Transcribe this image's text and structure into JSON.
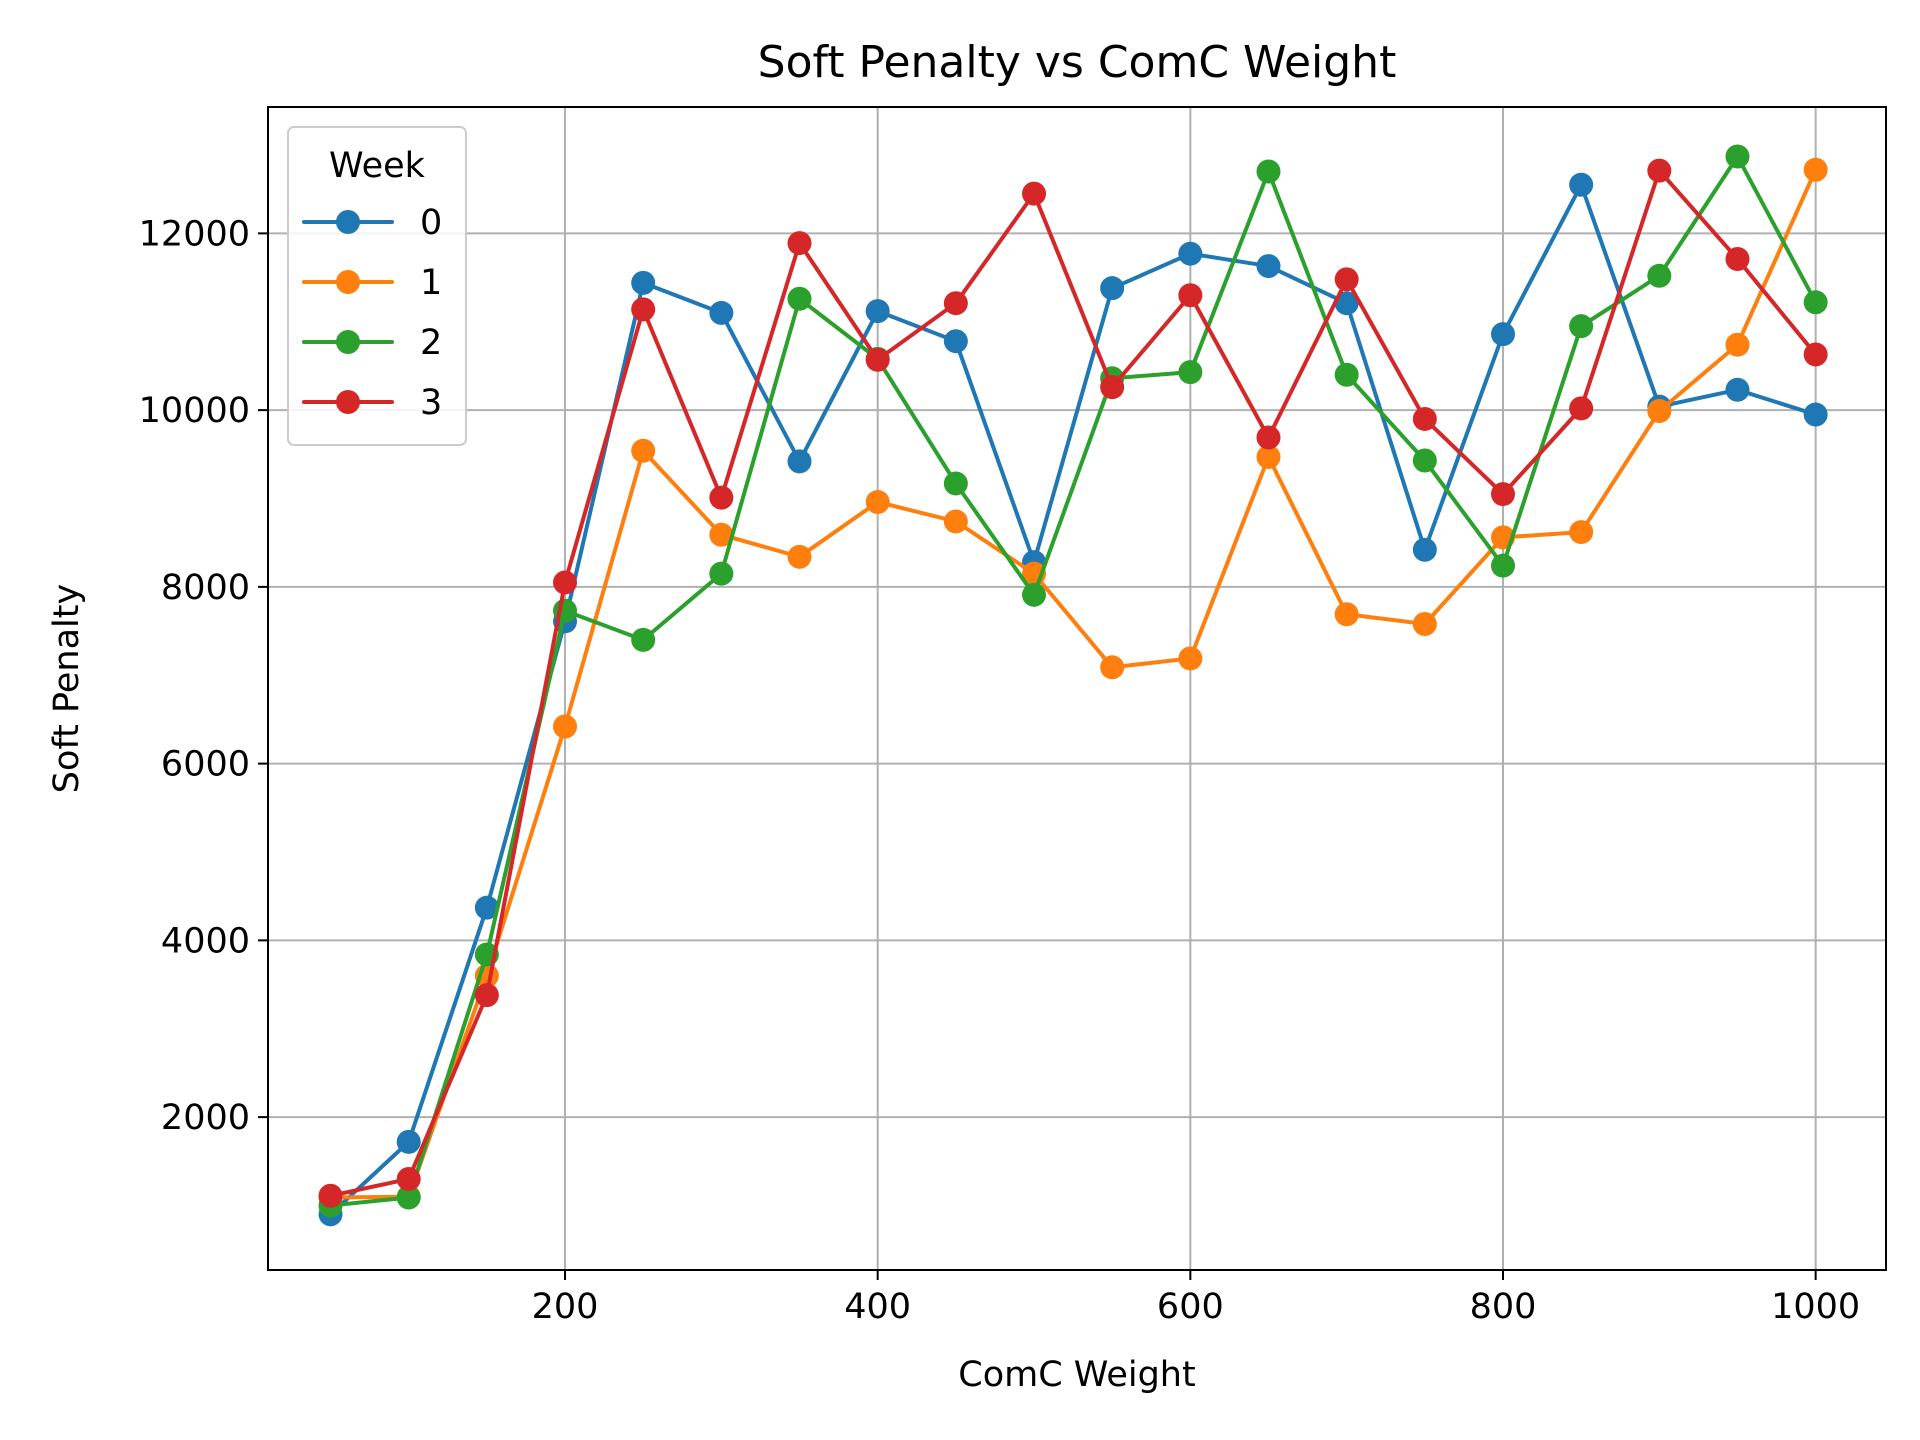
{
  "chart_data": {
    "type": "line",
    "title": "Soft Penalty vs ComC Weight",
    "xlabel": "ComC Weight",
    "ylabel": "Soft Penalty",
    "xlim": [
      10,
      1045
    ],
    "ylim": [
      270,
      13430
    ],
    "xticks": [
      200,
      400,
      600,
      800,
      1000
    ],
    "yticks": [
      2000,
      4000,
      6000,
      8000,
      10000,
      12000
    ],
    "grid": true,
    "legend": {
      "title": "Week",
      "placement": "top-left"
    },
    "colors": {
      "0": "#1f77b4",
      "1": "#ff7f0e",
      "2": "#2ca02c",
      "3": "#d62728"
    },
    "x": [
      50,
      100,
      150,
      200,
      250,
      300,
      350,
      400,
      450,
      500,
      550,
      600,
      650,
      700,
      750,
      800,
      850,
      900,
      950,
      1000
    ],
    "series": [
      {
        "name": "0",
        "values": [
          900,
          1720,
          4370,
          7610,
          11440,
          11100,
          9420,
          11120,
          10780,
          8280,
          11380,
          11770,
          11630,
          11210,
          8420,
          10860,
          12550,
          10040,
          10230,
          9950
        ]
      },
      {
        "name": "1",
        "values": [
          1090,
          1100,
          3600,
          6420,
          9540,
          8590,
          8340,
          8960,
          8740,
          8150,
          7090,
          7190,
          9470,
          7690,
          7580,
          8560,
          8620,
          9990,
          10740,
          12720
        ]
      },
      {
        "name": "2",
        "values": [
          1000,
          1090,
          3840,
          7730,
          7400,
          8150,
          11260,
          10580,
          9170,
          7910,
          10360,
          10430,
          12700,
          10400,
          9430,
          8240,
          10950,
          11520,
          12870,
          11220
        ]
      },
      {
        "name": "3",
        "values": [
          1110,
          1300,
          3380,
          8050,
          11140,
          9010,
          11890,
          10570,
          11210,
          12450,
          10260,
          11300,
          9690,
          11480,
          9900,
          9050,
          10020,
          12710,
          11710,
          10630
        ]
      }
    ]
  }
}
